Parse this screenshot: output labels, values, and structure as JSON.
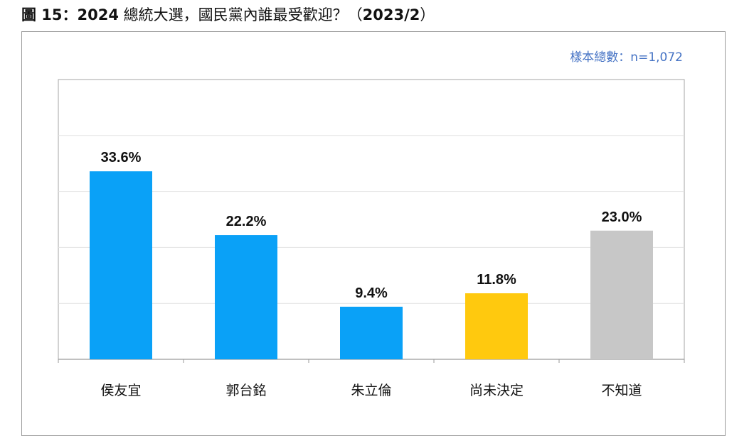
{
  "figure": {
    "title_prefix": "圖 15：2024",
    "title_middle": " 總統大選，國民黨內誰最受歡迎？（",
    "title_date": "2023/2",
    "title_suffix": "）"
  },
  "sample_label": "樣本總數：n=1,072",
  "chart_data": {
    "type": "bar",
    "title": "",
    "xlabel": "",
    "ylabel": "",
    "categories": [
      "侯友宜",
      "郭台銘",
      "朱立倫",
      "尚未決定",
      "不知道"
    ],
    "values": [
      33.6,
      22.2,
      9.4,
      11.8,
      23.0
    ],
    "value_labels": [
      "33.6%",
      "22.2%",
      "9.4%",
      "11.8%",
      "23.0%"
    ],
    "colors": [
      "#0aa1f7",
      "#0aa1f7",
      "#0aa1f7",
      "#ffc90e",
      "#c7c7c7"
    ],
    "ylim": [
      0,
      50
    ],
    "grid": true,
    "legend": "none"
  }
}
